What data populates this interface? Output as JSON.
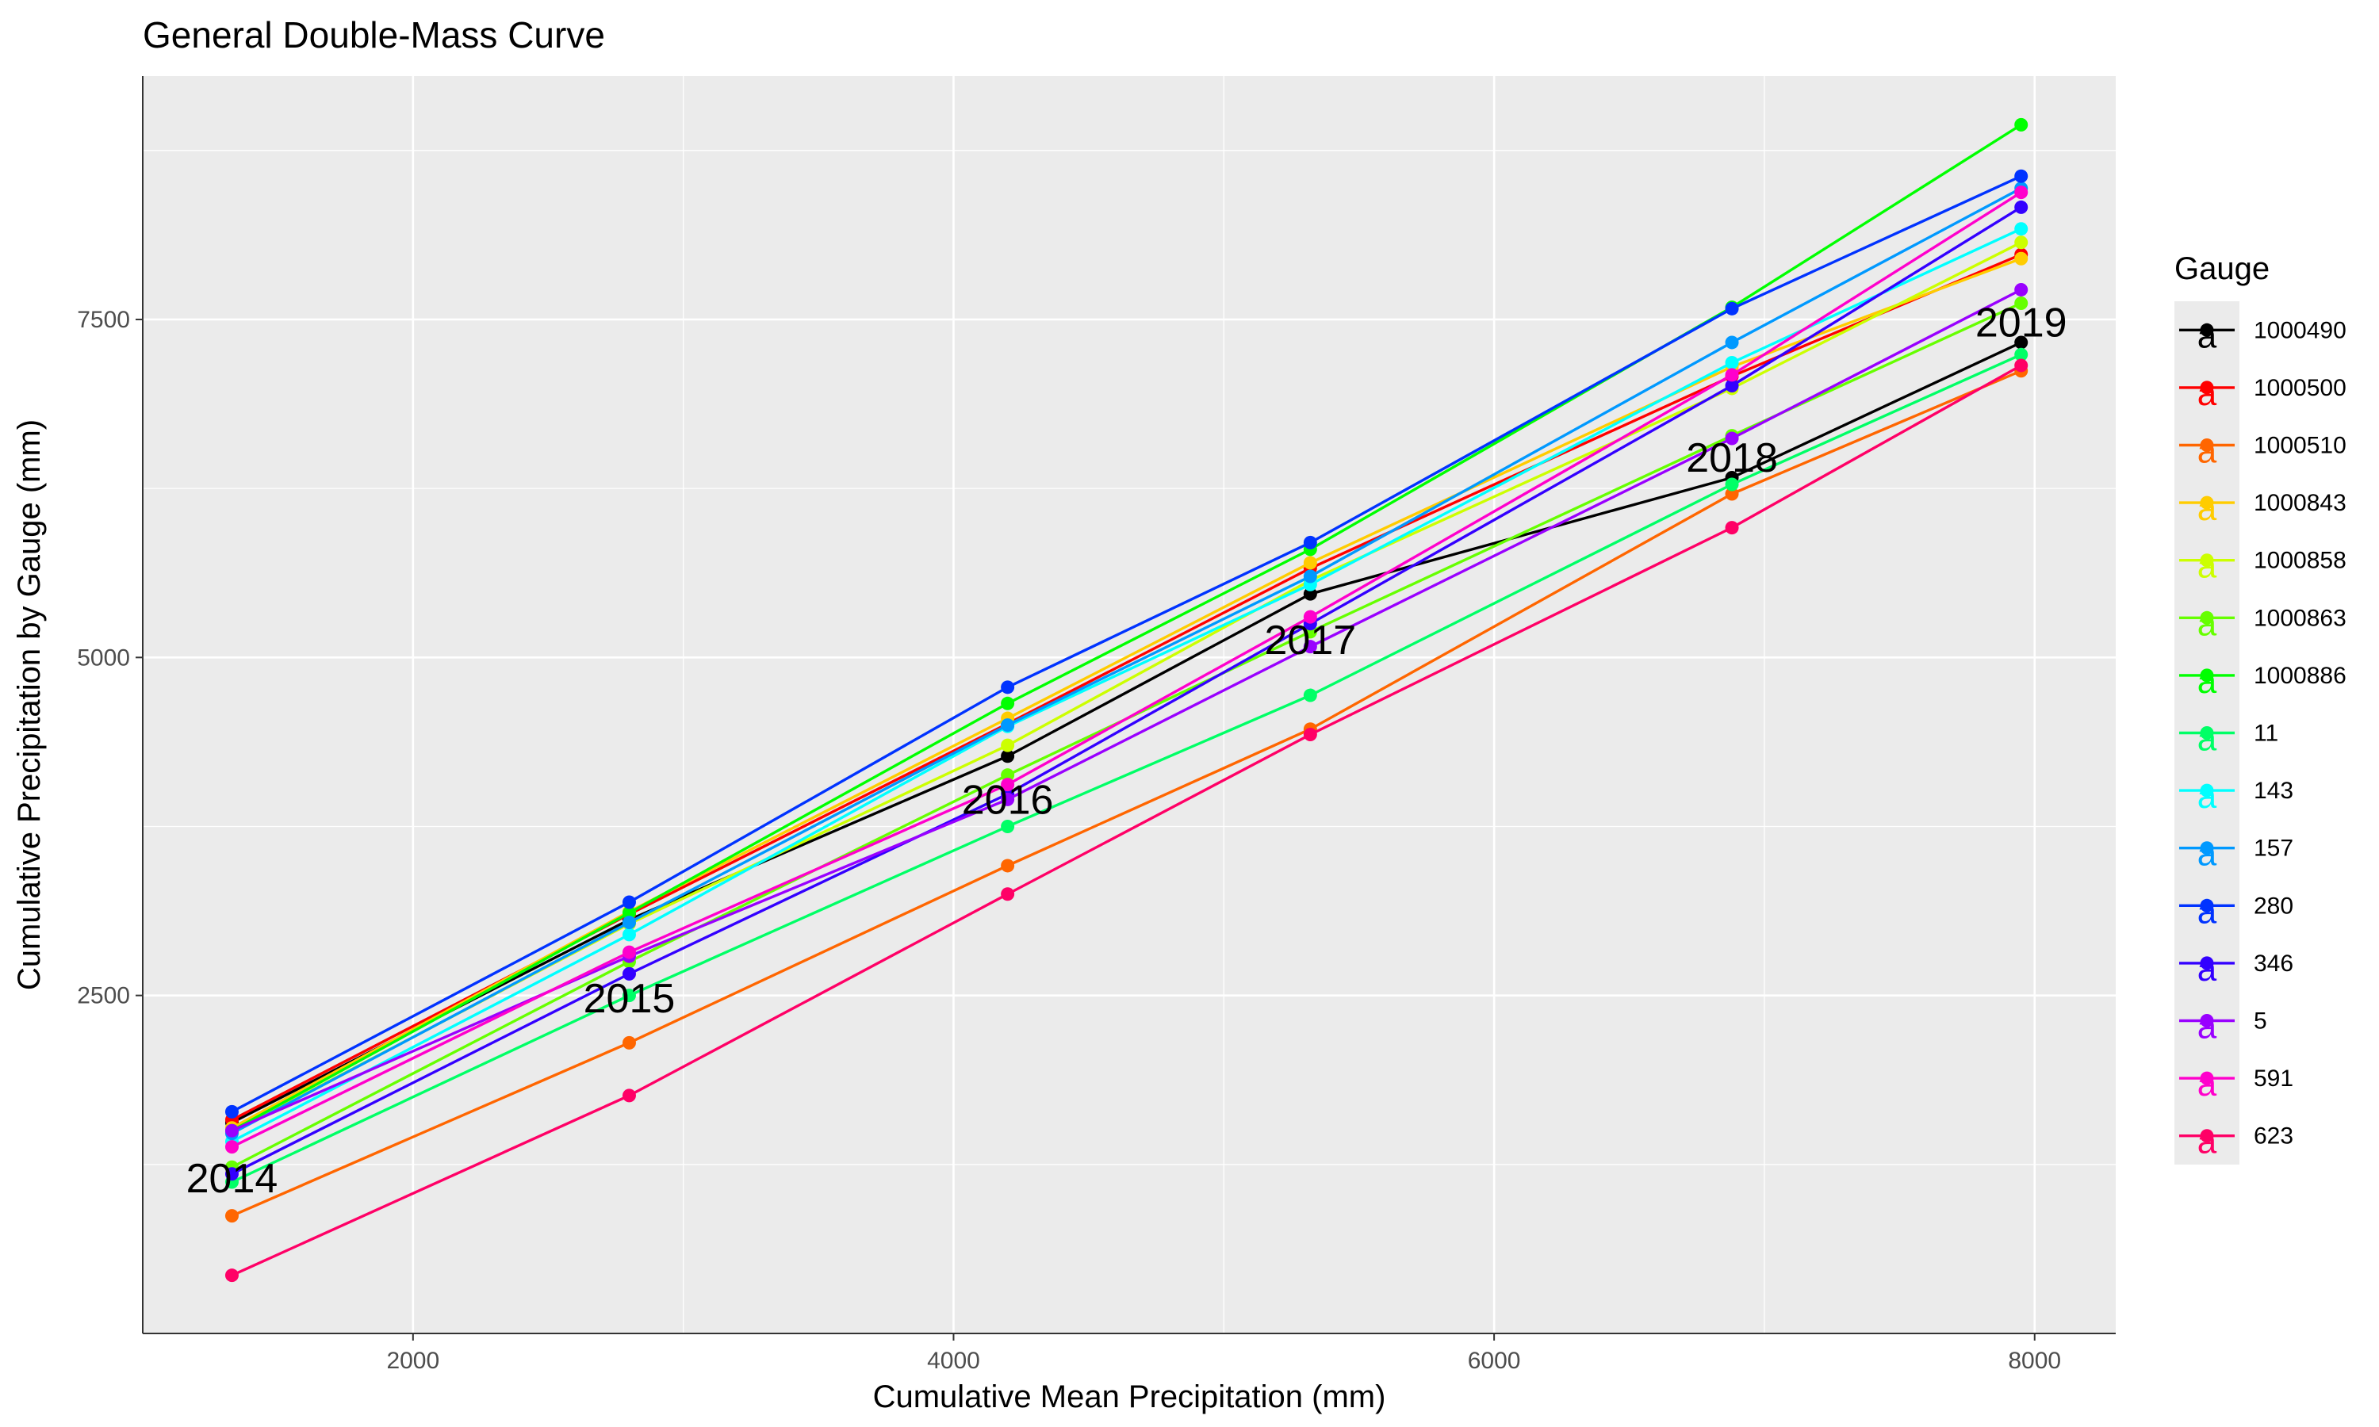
{
  "chart_data": {
    "type": "line",
    "title": "General Double-Mass Curve",
    "xlabel": "Cumulative Mean Precipitation (mm)",
    "ylabel": "Cumulative Precipitation by Gauge (mm)",
    "xlim": [
      1000,
      8300
    ],
    "ylim": [
      0,
      9300
    ],
    "x_ticks": [
      2000,
      4000,
      6000,
      8000
    ],
    "y_ticks": [
      2500,
      5000,
      7500
    ],
    "x_minor": [
      1000,
      3000,
      5000,
      7000
    ],
    "y_minor": [
      1250,
      3750,
      6250,
      8750
    ],
    "grid": true,
    "legend_title": "Gauge",
    "legend_position": "right",
    "legend_key_glyph": "a",
    "x": [
      1330,
      2800,
      4200,
      5320,
      6880,
      7950
    ],
    "year_labels": [
      {
        "text": "2014",
        "x": 1330,
        "y": 1150
      },
      {
        "text": "2015",
        "x": 2800,
        "y": 2480
      },
      {
        "text": "2016",
        "x": 4200,
        "y": 3950
      },
      {
        "text": "2017",
        "x": 5320,
        "y": 5130
      },
      {
        "text": "2018",
        "x": 6880,
        "y": 6480
      },
      {
        "text": "2019",
        "x": 7950,
        "y": 7480
      }
    ],
    "series": [
      {
        "name": "1000490",
        "color": "#000000",
        "values": [
          1560,
          3060,
          4270,
          5470,
          6330,
          7330
        ]
      },
      {
        "name": "1000500",
        "color": "#FF0000",
        "values": [
          1580,
          3100,
          4510,
          5660,
          7080,
          7980
        ]
      },
      {
        "name": "1000510",
        "color": "#FF6600",
        "values": [
          870,
          2150,
          3460,
          4470,
          6210,
          7120
        ]
      },
      {
        "name": "1000843",
        "color": "#FFCC00",
        "values": [
          1520,
          3120,
          4550,
          5700,
          7150,
          7950
        ]
      },
      {
        "name": "1000858",
        "color": "#CCFF00",
        "values": [
          1490,
          3030,
          4350,
          5570,
          6990,
          8070
        ]
      },
      {
        "name": "1000863",
        "color": "#66FF00",
        "values": [
          1230,
          2750,
          4130,
          5190,
          6640,
          7620
        ]
      },
      {
        "name": "1000886",
        "color": "#00FF00",
        "values": [
          1500,
          3110,
          4660,
          5800,
          7590,
          8940
        ]
      },
      {
        "name": "11",
        "color": "#00FF66",
        "values": [
          1120,
          2500,
          3750,
          4720,
          6280,
          7240
        ]
      },
      {
        "name": "143",
        "color": "#00FFFF",
        "values": [
          1420,
          2950,
          4490,
          5540,
          7180,
          8170
        ]
      },
      {
        "name": "157",
        "color": "#0099FF",
        "values": [
          1480,
          3040,
          4500,
          5600,
          7330,
          8470
        ]
      },
      {
        "name": "280",
        "color": "#0033FF",
        "values": [
          1640,
          3190,
          4780,
          5850,
          7580,
          8560
        ]
      },
      {
        "name": "346",
        "color": "#3300FF",
        "values": [
          1180,
          2660,
          3990,
          5250,
          7010,
          8330
        ]
      },
      {
        "name": "5",
        "color": "#9900FF",
        "values": [
          1500,
          2790,
          3950,
          5080,
          6620,
          7720
        ]
      },
      {
        "name": "591",
        "color": "#FF00CC",
        "values": [
          1380,
          2820,
          4060,
          5300,
          7090,
          8440
        ]
      },
      {
        "name": "623",
        "color": "#FF0066",
        "values": [
          430,
          1760,
          3250,
          4430,
          5960,
          7160
        ]
      }
    ]
  }
}
